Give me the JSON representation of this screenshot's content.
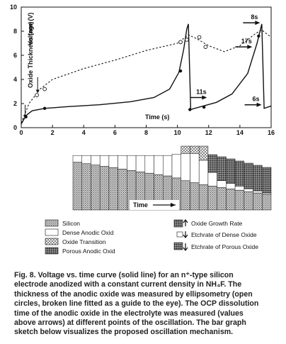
{
  "figure": {
    "caption_lines": [
      "Fig. 8. Voltage vs. time curve (solid line) for an n⁺-type silicon",
      "electrode anodized with a constant current density in NH₄F. The",
      "thickness of the anodic oxide was measured by ellipsometry (open",
      "circles, broken line fitted as a guide to the eye). The OCP dissolution",
      "time of the anodic oxide in the electrolyte was measured (values",
      "above arrows) at different points of the oscillation. The bar graph",
      "sketch below visualizes the proposed oscillation mechanism."
    ]
  },
  "chart_data": {
    "type": "line",
    "xlabel": "Time (s)",
    "ylabel_oxide": "Oxide Thickness (nm)",
    "ylabel_voltage": "Voltage (V)",
    "xlim": [
      0,
      16
    ],
    "ylim": [
      0,
      10
    ],
    "x_ticks": [
      0,
      2,
      4,
      6,
      8,
      10,
      12,
      14,
      16
    ],
    "y_ticks": [
      0,
      2,
      4,
      6,
      8,
      10
    ],
    "voltage_curve": [
      [
        0,
        0.3
      ],
      [
        0.3,
        1.0
      ],
      [
        0.7,
        1.4
      ],
      [
        1.5,
        1.6
      ],
      [
        3,
        1.75
      ],
      [
        5,
        1.9
      ],
      [
        7,
        2.15
      ],
      [
        8.5,
        2.5
      ],
      [
        9.5,
        3.2
      ],
      [
        10.1,
        4.6
      ],
      [
        10.4,
        6.5
      ],
      [
        10.6,
        8.2
      ],
      [
        10.7,
        8.6
      ],
      [
        10.85,
        1.5
      ],
      [
        11.1,
        1.6
      ],
      [
        12.5,
        2.1
      ],
      [
        13.5,
        2.8
      ],
      [
        14.5,
        4.5
      ],
      [
        15.1,
        7.0
      ],
      [
        15.4,
        8.6
      ],
      [
        15.55,
        1.6
      ],
      [
        16,
        1.8
      ]
    ],
    "oxide_thickness_fit": [
      [
        0,
        0.4
      ],
      [
        0.5,
        2.0
      ],
      [
        1.2,
        3.2
      ],
      [
        2,
        4.0
      ],
      [
        4,
        4.9
      ],
      [
        6,
        5.6
      ],
      [
        8,
        6.4
      ],
      [
        10,
        7.0
      ],
      [
        10.7,
        7.7
      ],
      [
        11.2,
        7.4
      ],
      [
        12,
        6.8
      ],
      [
        13,
        6.3
      ],
      [
        14,
        6.8
      ],
      [
        15,
        7.8
      ],
      [
        15.4,
        8.1
      ],
      [
        16,
        7.5
      ]
    ],
    "open_circles": [
      [
        1.0,
        2.7
      ],
      [
        1.5,
        3.2
      ],
      [
        10.2,
        7.1
      ],
      [
        10.6,
        7.3
      ],
      [
        11.4,
        7.5
      ],
      [
        11.8,
        6.7
      ]
    ],
    "filled_points": [
      [
        0.3,
        0.9
      ],
      [
        1.5,
        1.6
      ],
      [
        10.2,
        4.7
      ],
      [
        10.8,
        1.5
      ],
      [
        11.7,
        1.7
      ],
      [
        15.2,
        7.6
      ]
    ],
    "markers": {
      "oxide_thickness_arrow_x": 0.25,
      "voltage_arrow_x": 1.05
    },
    "arrow_annotations": [
      {
        "label": "8s",
        "x": 15.2,
        "y": 8.7
      },
      {
        "label": "17s",
        "x": 14.7,
        "y": 6.7
      },
      {
        "label": "11s",
        "x": 11.8,
        "y": 2.5
      },
      {
        "label": "6s",
        "x": 15.3,
        "y": 1.9
      }
    ]
  },
  "bar_sketch": {
    "time_label": "Time",
    "n_bars": 22,
    "silicon_level": [
      0.7,
      0.68,
      0.66,
      0.64,
      0.62,
      0.6,
      0.58,
      0.56,
      0.54,
      0.52,
      0.5,
      0.47,
      0.43,
      0.4,
      0.37,
      0.35,
      0.33,
      0.31,
      0.29,
      0.27,
      0.25,
      0.23
    ],
    "dense_level": [
      0.1,
      0.12,
      0.14,
      0.16,
      0.18,
      0.2,
      0.22,
      0.24,
      0.26,
      0.28,
      0.3,
      0.35,
      0.4,
      0.43,
      0.36,
      0.2,
      0.1,
      0.08,
      0.06,
      0.04,
      0.03,
      0.02
    ]
  },
  "legend": {
    "items_left": [
      "Silicon",
      "Dense Anodic Oxid",
      "Oxide Transition",
      "Porous Anodic Oxid"
    ],
    "items_right": [
      "Oxide Growth Rate",
      "Etchrate of Dense Oxide",
      "Etchrate of Porous Oxide"
    ]
  },
  "colors": {
    "ink": "#111111",
    "silicon_fill": "#bdbdbd",
    "porous_fill": "#7a7a7a",
    "paper": "#ffffff"
  }
}
